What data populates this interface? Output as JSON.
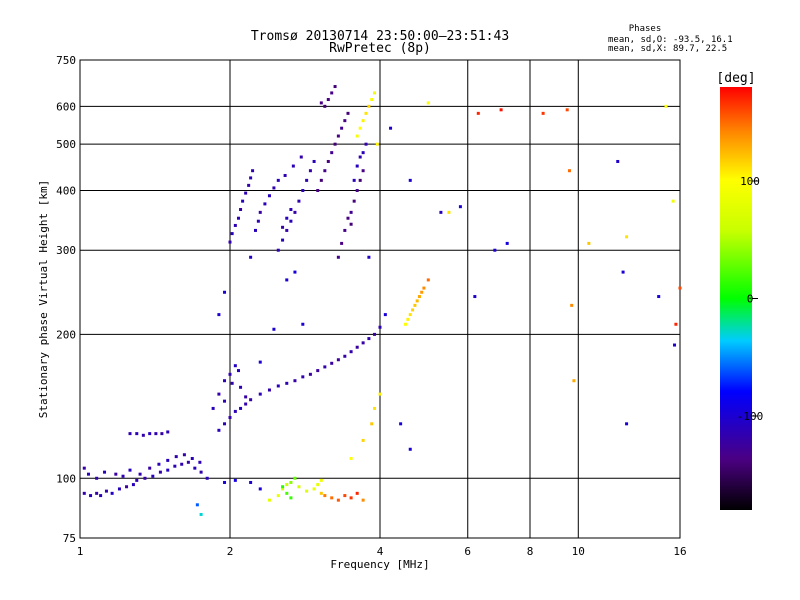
{
  "chart_data": {
    "type": "scatter",
    "title": "Tromsø 20130714 23:50:00–23:51:43",
    "subtitle": "RwPretec (8p)",
    "xlabel": "Frequency [MHz]",
    "ylabel": "Stationary phase Virtual Height [km]",
    "x_scale": "log",
    "y_scale": "log",
    "xlim": [
      1,
      16
    ],
    "ylim": [
      75,
      750
    ],
    "x_ticks": [
      1,
      2,
      4,
      6,
      8,
      10,
      16
    ],
    "y_ticks": [
      75,
      100,
      200,
      300,
      400,
      500,
      600,
      750
    ],
    "x_grid": [
      2,
      4,
      6,
      8,
      10
    ],
    "y_grid": [
      100,
      200,
      300,
      400,
      500,
      600
    ],
    "stats": {
      "heading": "Phases",
      "line_o": "mean, sd,O: -93.5, 16.1",
      "line_x": "mean, sd,X:  89.7, 22.5"
    },
    "colorbar": {
      "label": "[deg]",
      "range": [
        -180,
        180
      ],
      "ticks": [
        100,
        0,
        -100
      ]
    },
    "series": [
      {
        "points": [
          [
            1.02,
            93,
            -115
          ],
          [
            1.05,
            92,
            -110
          ],
          [
            1.08,
            93,
            -120
          ],
          [
            1.1,
            92,
            -112
          ],
          [
            1.13,
            94,
            -118
          ],
          [
            1.16,
            93,
            -105
          ],
          [
            1.2,
            95,
            -110
          ],
          [
            1.24,
            96,
            -125
          ],
          [
            1.28,
            97,
            -108
          ],
          [
            1.3,
            99,
            -115
          ],
          [
            1.35,
            100,
            -120
          ],
          [
            1.4,
            101,
            -110
          ],
          [
            1.45,
            103,
            -118
          ],
          [
            1.5,
            104,
            -105
          ],
          [
            1.55,
            106,
            -112
          ],
          [
            1.6,
            107,
            -115
          ],
          [
            1.65,
            108,
            -120
          ],
          [
            1.7,
            105,
            -110
          ],
          [
            1.75,
            103,
            -118
          ],
          [
            1.8,
            100,
            -112
          ],
          [
            1.02,
            105,
            -118
          ],
          [
            1.04,
            102,
            -112
          ],
          [
            1.08,
            100,
            -116
          ],
          [
            1.12,
            103,
            -110
          ],
          [
            1.18,
            102,
            -122
          ],
          [
            1.22,
            101,
            -114
          ],
          [
            1.26,
            104,
            -108
          ],
          [
            1.32,
            102,
            -117
          ],
          [
            1.38,
            105,
            -121
          ],
          [
            1.44,
            107,
            -113
          ],
          [
            1.5,
            109,
            -110
          ],
          [
            1.56,
            111,
            -116
          ],
          [
            1.62,
            112,
            -119
          ],
          [
            1.68,
            110,
            -111
          ],
          [
            1.74,
            108,
            -114
          ],
          [
            1.26,
            124,
            -115
          ],
          [
            1.3,
            124,
            -112
          ],
          [
            1.34,
            123,
            -118
          ],
          [
            1.38,
            124,
            -110
          ],
          [
            1.42,
            124,
            -116
          ],
          [
            1.46,
            124,
            -120
          ],
          [
            1.5,
            125,
            -113
          ],
          [
            1.9,
            126,
            -110
          ],
          [
            1.95,
            130,
            -114
          ],
          [
            2.0,
            134,
            -118
          ],
          [
            2.05,
            138,
            -112
          ],
          [
            2.1,
            140,
            -108
          ],
          [
            2.15,
            143,
            -116
          ],
          [
            2.2,
            146,
            -120
          ],
          [
            2.3,
            150,
            -112
          ],
          [
            2.4,
            153,
            -118
          ],
          [
            2.5,
            156,
            -110
          ],
          [
            2.6,
            158,
            -114
          ],
          [
            2.7,
            160,
            -120
          ],
          [
            2.8,
            163,
            -117
          ],
          [
            2.9,
            165,
            -122
          ],
          [
            3.0,
            168,
            -125
          ],
          [
            3.1,
            171,
            -118
          ],
          [
            3.2,
            174,
            -122
          ],
          [
            3.3,
            177,
            -126
          ],
          [
            3.4,
            180,
            -121
          ],
          [
            3.5,
            184,
            -118
          ],
          [
            3.6,
            188,
            -124
          ],
          [
            3.7,
            192,
            -120
          ],
          [
            3.8,
            196,
            -117
          ],
          [
            3.9,
            200,
            -122
          ],
          [
            4.0,
            207,
            -115
          ],
          [
            1.85,
            140,
            -110
          ],
          [
            1.9,
            150,
            -118
          ],
          [
            1.95,
            160,
            -112
          ],
          [
            2.0,
            165,
            -116
          ],
          [
            2.05,
            172,
            -108
          ],
          [
            2.1,
            155,
            -114
          ],
          [
            2.15,
            148,
            -120
          ],
          [
            1.95,
            145,
            -112
          ],
          [
            2.02,
            158,
            -116
          ],
          [
            2.08,
            168,
            -110
          ],
          [
            2.0,
            312,
            -118
          ],
          [
            2.02,
            325,
            -110
          ],
          [
            2.05,
            338,
            -115
          ],
          [
            2.08,
            350,
            -112
          ],
          [
            2.1,
            365,
            -120
          ],
          [
            2.12,
            380,
            -108
          ],
          [
            2.15,
            395,
            -114
          ],
          [
            2.18,
            410,
            -118
          ],
          [
            2.2,
            425,
            -112
          ],
          [
            2.22,
            440,
            -116
          ],
          [
            2.25,
            330,
            -110
          ],
          [
            2.28,
            345,
            -114
          ],
          [
            2.3,
            360,
            -120
          ],
          [
            2.35,
            375,
            -112
          ],
          [
            2.4,
            390,
            -108
          ],
          [
            2.45,
            405,
            -116
          ],
          [
            2.5,
            420,
            -112
          ],
          [
            2.55,
            335,
            -118
          ],
          [
            2.6,
            350,
            -110
          ],
          [
            2.65,
            365,
            -114
          ],
          [
            2.5,
            300,
            -114
          ],
          [
            2.55,
            315,
            -110
          ],
          [
            2.6,
            330,
            -118
          ],
          [
            2.65,
            345,
            -112
          ],
          [
            2.7,
            360,
            -120
          ],
          [
            2.75,
            380,
            -116
          ],
          [
            2.8,
            400,
            -112
          ],
          [
            2.85,
            420,
            -114
          ],
          [
            2.9,
            440,
            -118
          ],
          [
            2.95,
            460,
            -110
          ],
          [
            2.58,
            430,
            -115
          ],
          [
            2.68,
            450,
            -112
          ],
          [
            2.78,
            470,
            -118
          ],
          [
            3.0,
            400,
            -135
          ],
          [
            3.05,
            420,
            -140
          ],
          [
            3.1,
            440,
            -132
          ],
          [
            3.15,
            460,
            -138
          ],
          [
            3.2,
            480,
            -130
          ],
          [
            3.25,
            500,
            -142
          ],
          [
            3.3,
            520,
            -136
          ],
          [
            3.35,
            540,
            -128
          ],
          [
            3.4,
            560,
            -134
          ],
          [
            3.45,
            580,
            -140
          ],
          [
            3.1,
            600,
            -145
          ],
          [
            3.15,
            620,
            -138
          ],
          [
            3.2,
            640,
            -132
          ],
          [
            3.25,
            660,
            -140
          ],
          [
            3.05,
            610,
            -136
          ],
          [
            3.5,
            360,
            -130
          ],
          [
            3.55,
            380,
            -138
          ],
          [
            3.6,
            400,
            -134
          ],
          [
            3.65,
            420,
            -140
          ],
          [
            3.7,
            440,
            -136
          ],
          [
            3.3,
            290,
            -130
          ],
          [
            3.35,
            310,
            -136
          ],
          [
            3.4,
            330,
            -132
          ],
          [
            3.45,
            350,
            -138
          ],
          [
            3.5,
            340,
            -140
          ],
          [
            3.55,
            420,
            -112
          ],
          [
            3.6,
            450,
            -108
          ],
          [
            3.65,
            470,
            -115
          ],
          [
            3.7,
            480,
            -110
          ],
          [
            3.75,
            500,
            -118
          ]
        ]
      },
      {
        "points": [
          [
            2.4,
            90,
            80
          ],
          [
            2.5,
            92,
            85
          ],
          [
            2.55,
            95,
            75
          ],
          [
            2.6,
            97,
            60
          ],
          [
            2.65,
            98,
            40
          ],
          [
            2.7,
            100,
            30
          ],
          [
            2.6,
            93,
            20
          ],
          [
            2.65,
            91,
            15
          ],
          [
            2.55,
            96,
            10
          ],
          [
            3.1,
            92,
            145
          ],
          [
            3.2,
            91,
            150
          ],
          [
            3.3,
            90,
            155
          ],
          [
            3.4,
            92,
            160
          ],
          [
            3.5,
            91,
            165
          ],
          [
            3.6,
            93,
            170
          ],
          [
            3.7,
            90,
            140
          ],
          [
            3.05,
            93,
            120
          ],
          [
            4.5,
            210,
            100
          ],
          [
            4.55,
            215,
            105
          ],
          [
            4.6,
            220,
            110
          ],
          [
            4.65,
            225,
            115
          ],
          [
            4.7,
            230,
            120
          ],
          [
            4.75,
            235,
            125
          ],
          [
            4.8,
            240,
            130
          ],
          [
            4.9,
            250,
            140
          ],
          [
            5.0,
            260,
            150
          ],
          [
            4.85,
            245,
            135
          ],
          [
            3.6,
            520,
            95
          ],
          [
            3.65,
            540,
            100
          ],
          [
            3.7,
            560,
            105
          ],
          [
            3.75,
            580,
            110
          ],
          [
            3.8,
            600,
            115
          ],
          [
            3.85,
            620,
            95
          ],
          [
            3.9,
            640,
            90
          ],
          [
            3.95,
            500,
            105
          ],
          [
            2.95,
            95,
            85
          ],
          [
            3.0,
            97,
            80
          ],
          [
            3.05,
            99,
            90
          ],
          [
            2.85,
            94,
            75
          ],
          [
            2.75,
            96,
            70
          ],
          [
            6.3,
            580,
            170
          ],
          [
            7.0,
            590,
            175
          ],
          [
            8.5,
            580,
            165
          ],
          [
            9.5,
            590,
            160
          ],
          [
            9.6,
            440,
            150
          ],
          [
            9.7,
            230,
            140
          ],
          [
            9.8,
            160,
            130
          ],
          [
            10.5,
            310,
            120
          ],
          [
            12.5,
            320,
            110
          ],
          [
            15.0,
            600,
            100
          ],
          [
            15.5,
            380,
            90
          ],
          [
            15.7,
            210,
            170
          ],
          [
            16.0,
            250,
            160
          ],
          [
            5.5,
            360,
            110
          ],
          [
            5.0,
            610,
            100
          ],
          [
            3.85,
            130,
            120
          ],
          [
            3.9,
            140,
            110
          ],
          [
            4.0,
            150,
            105
          ],
          [
            3.7,
            120,
            115
          ],
          [
            3.5,
            110,
            100
          ]
        ]
      },
      {
        "points": [
          [
            2.6,
            260,
            -100
          ],
          [
            2.7,
            270,
            -95
          ],
          [
            2.45,
            205,
            -100
          ],
          [
            2.8,
            210,
            -98
          ],
          [
            4.2,
            540,
            -102
          ],
          [
            4.6,
            420,
            -100
          ],
          [
            5.8,
            370,
            -98
          ],
          [
            6.2,
            240,
            -104
          ],
          [
            6.8,
            300,
            -100
          ],
          [
            7.2,
            310,
            -96
          ],
          [
            12.0,
            460,
            -102
          ],
          [
            12.3,
            270,
            -100
          ],
          [
            12.5,
            130,
            -98
          ],
          [
            14.5,
            240,
            -96
          ],
          [
            15.6,
            190,
            -102
          ],
          [
            1.9,
            220,
            -100
          ],
          [
            1.95,
            245,
            -98
          ],
          [
            2.2,
            290,
            -104
          ],
          [
            2.3,
            175,
            -100
          ],
          [
            1.72,
            88,
            -60
          ],
          [
            1.75,
            84,
            -30
          ],
          [
            1.95,
            98,
            -96
          ],
          [
            2.05,
            99,
            -94
          ],
          [
            2.2,
            98,
            -100
          ],
          [
            2.3,
            95,
            -98
          ],
          [
            4.4,
            130,
            -96
          ],
          [
            4.6,
            115,
            -100
          ],
          [
            5.3,
            360,
            -110
          ],
          [
            4.1,
            220,
            -98
          ],
          [
            3.8,
            290,
            -104
          ]
        ]
      }
    ]
  }
}
